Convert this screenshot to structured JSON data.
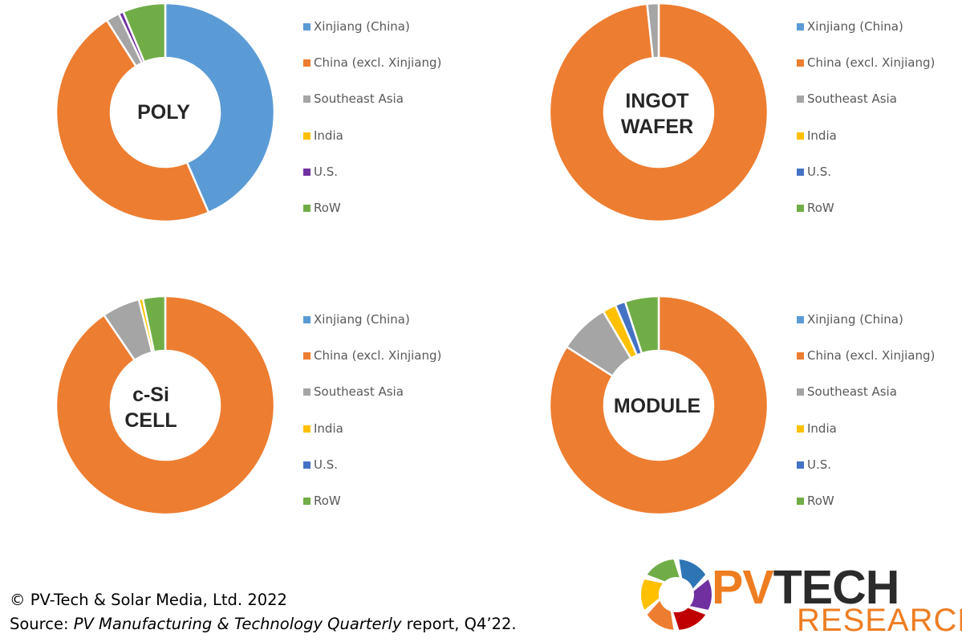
{
  "chart_data": [
    {
      "type": "pie",
      "title": "POLY",
      "categories": [
        "Xinjiang (China)",
        "China (excl. Xinjiang)",
        "Southeast Asia",
        "India",
        "U.S.",
        "RoW"
      ],
      "values": [
        43.5,
        47.5,
        2.0,
        0.0,
        0.7,
        6.3
      ],
      "colors": [
        "#5b9bd5",
        "#ed7d31",
        "#a5a5a5",
        "#ffc000",
        "#7030a0",
        "#70ad47"
      ],
      "legend": "right"
    },
    {
      "type": "pie",
      "title": "INGOT WAFER",
      "categories": [
        "Xinjiang (China)",
        "China (excl. Xinjiang)",
        "Southeast Asia",
        "India",
        "U.S.",
        "RoW"
      ],
      "values": [
        0.0,
        98.3,
        1.7,
        0.0,
        0.0,
        0.0
      ],
      "colors": [
        "#5b9bd5",
        "#ed7d31",
        "#a5a5a5",
        "#ffc000",
        "#4472c4",
        "#70ad47"
      ],
      "legend": "right"
    },
    {
      "type": "pie",
      "title": "c-Si CELL",
      "categories": [
        "Xinjiang (China)",
        "China (excl. Xinjiang)",
        "Southeast Asia",
        "India",
        "U.S.",
        "RoW"
      ],
      "values": [
        0.0,
        90.5,
        5.6,
        0.6,
        0.0,
        3.3
      ],
      "colors": [
        "#5b9bd5",
        "#ed7d31",
        "#a5a5a5",
        "#ffc000",
        "#4472c4",
        "#70ad47"
      ],
      "legend": "right"
    },
    {
      "type": "pie",
      "title": "MODULE",
      "categories": [
        "Xinjiang (China)",
        "China (excl. Xinjiang)",
        "Southeast Asia",
        "India",
        "U.S.",
        "RoW"
      ],
      "values": [
        0.0,
        84.0,
        7.5,
        2.0,
        1.5,
        5.0
      ],
      "colors": [
        "#5b9bd5",
        "#ed7d31",
        "#a5a5a5",
        "#ffc000",
        "#4472c4",
        "#70ad47"
      ],
      "legend": "right"
    }
  ],
  "center_labels": [
    [
      "POLY"
    ],
    [
      "INGOT",
      "WAFER"
    ],
    [
      "c-Si",
      "CELL"
    ],
    [
      "MODULE"
    ]
  ],
  "footer": {
    "copyright": "© PV-Tech & Solar Media, Ltd. 2022",
    "source_prefix": "Source: ",
    "source_title": "PV Manufacturing & Technology Quarterly",
    "source_suffix": " report, Q4’22."
  },
  "logo": {
    "word_pv": "PV",
    "word_tech": "TECH",
    "sub": "RESEARCH",
    "colors": [
      "#2e75b6",
      "#7030a0",
      "#c00000",
      "#ed7d31",
      "#ffc000",
      "#70ad47"
    ]
  }
}
